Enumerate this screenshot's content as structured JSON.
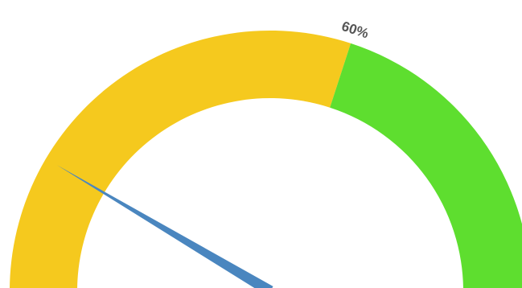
{
  "chart_data": {
    "type": "gauge",
    "range": [
      0,
      100
    ],
    "bands": [
      {
        "from": 0,
        "to": 60,
        "color": "#f5c91e"
      },
      {
        "from": 60,
        "to": 100,
        "color": "#5ede2f"
      }
    ],
    "threshold_label": "60%",
    "needle": {
      "value": 17,
      "color": "#4a86bf"
    }
  }
}
